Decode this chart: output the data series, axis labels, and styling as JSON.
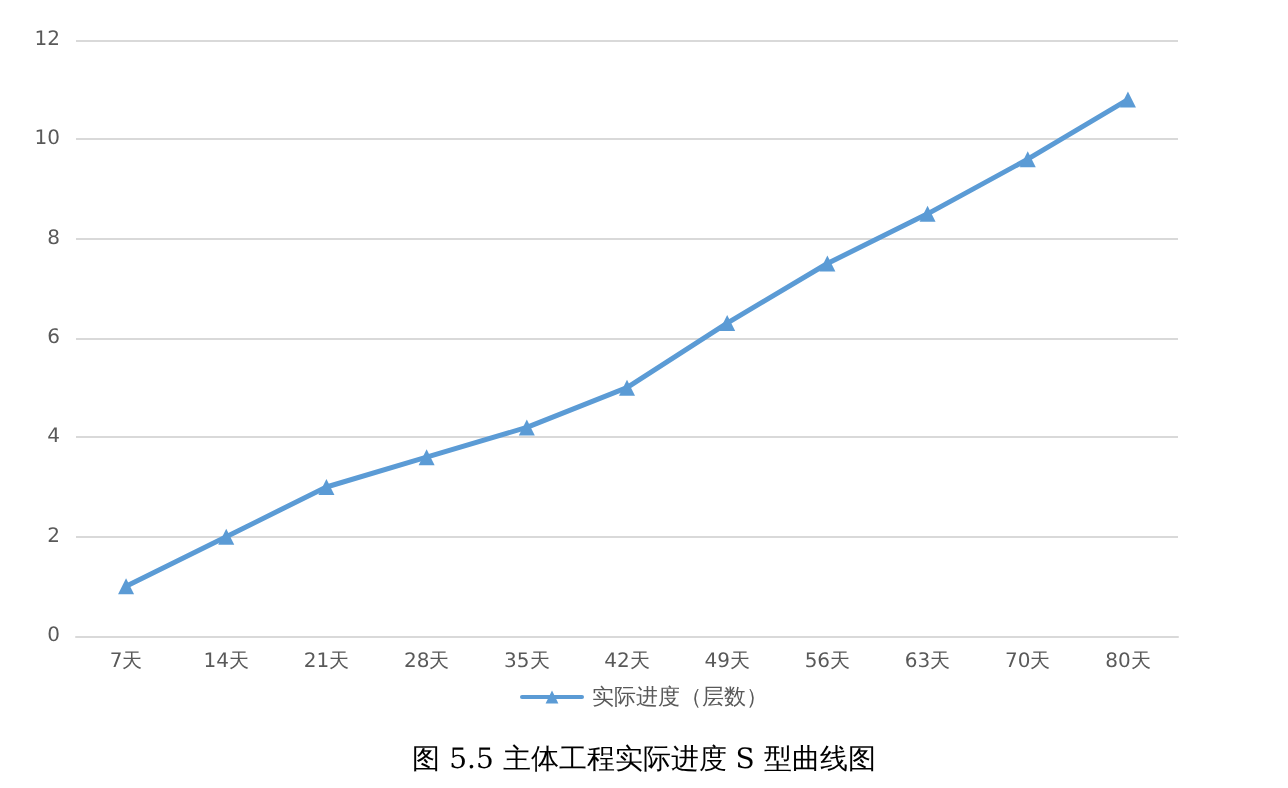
{
  "chart_data": {
    "type": "line",
    "title": "图 5.5 主体工程实际进度 S 型曲线图",
    "categories": [
      "7天",
      "14天",
      "21天",
      "28天",
      "35天",
      "42天",
      "49天",
      "56天",
      "63天",
      "70天",
      "80天"
    ],
    "series": [
      {
        "name": "实际进度（层数）",
        "color": "#5b9bd5",
        "values": [
          1,
          2,
          3,
          3.6,
          4.2,
          5,
          6.3,
          7.5,
          8.5,
          9.6,
          10.8
        ]
      }
    ],
    "ylim": [
      0,
      12
    ],
    "yticks": [
      0,
      2,
      4,
      6,
      8,
      10,
      12
    ],
    "grid": "y",
    "legend": "bottom",
    "marker": "triangle",
    "line_style": "solid"
  }
}
